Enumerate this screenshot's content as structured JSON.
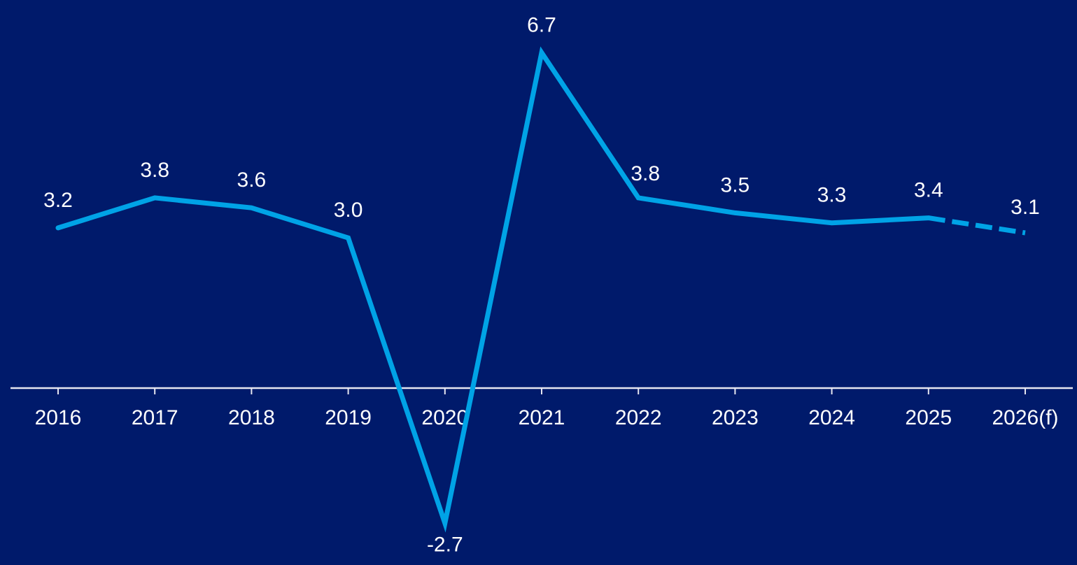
{
  "colors": {
    "background": "#001a6b",
    "line": "#00a3e6",
    "axis": "#e6e6f0",
    "text": "#ffffff"
  },
  "chart_data": {
    "type": "line",
    "x": [
      "2016",
      "2017",
      "2018",
      "2019",
      "2020",
      "2021",
      "2022",
      "2023",
      "2024",
      "2025",
      "2026(f)"
    ],
    "series": [
      {
        "values": [
          3.2,
          3.8,
          3.6,
          3.0,
          -2.7,
          6.7,
          3.8,
          3.5,
          3.3,
          3.4,
          3.1
        ],
        "data_labels": [
          "3.2",
          "3.8",
          "3.6",
          "3.0",
          "-2.7",
          "6.7",
          "3.8",
          "3.5",
          "3.3",
          "3.4",
          "3.1"
        ],
        "forecast_from_index": 9
      }
    ],
    "ylim": [
      -3.4,
      7.6
    ],
    "grid": false,
    "legend": "none",
    "y_axis_labels": false
  }
}
